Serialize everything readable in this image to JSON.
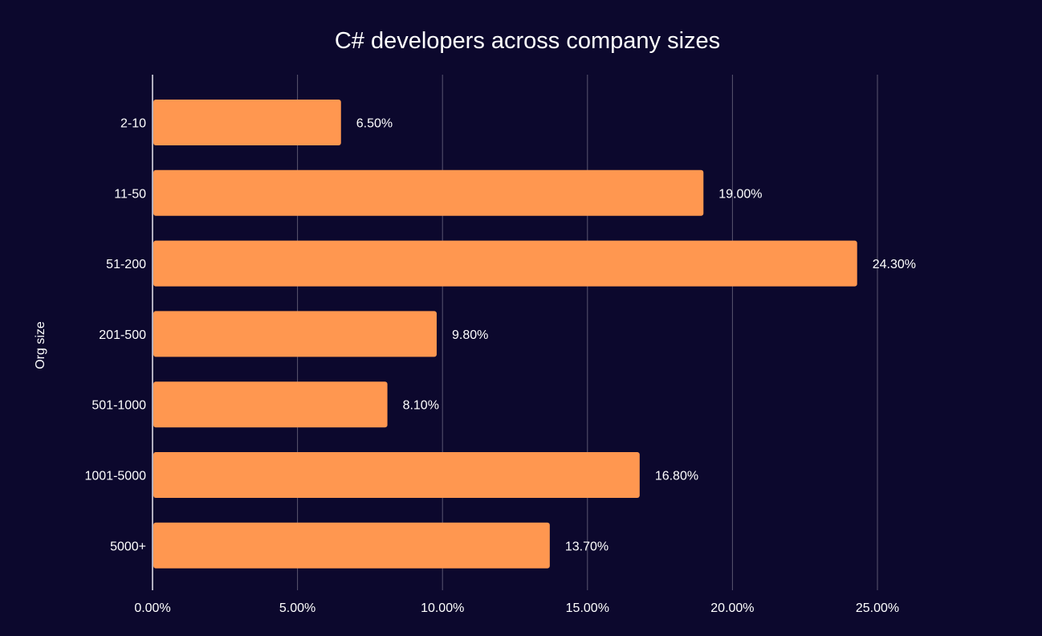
{
  "colors": {
    "background": "#0c082d",
    "bar": "#ff9750",
    "grid": "#5a5670",
    "baseline": "#e6e6ee",
    "text": "#ffffff"
  },
  "chart_data": {
    "type": "bar",
    "orientation": "horizontal",
    "title": "C# developers across company sizes",
    "xlabel": "",
    "ylabel": "Org size",
    "categories": [
      "2-10",
      "11-50",
      "51-200",
      "201-500",
      "501-1000",
      "1001-5000",
      "5000+"
    ],
    "values": [
      6.5,
      19.0,
      24.3,
      9.8,
      8.1,
      16.8,
      13.7
    ],
    "value_labels": [
      "6.50%",
      "19.00%",
      "24.30%",
      "9.80%",
      "8.10%",
      "16.80%",
      "13.70%"
    ],
    "xlim": [
      0,
      25
    ],
    "xticks": [
      0,
      5,
      10,
      15,
      20,
      25
    ],
    "xtick_labels": [
      "0.00%",
      "5.00%",
      "10.00%",
      "15.00%",
      "20.00%",
      "25.00%"
    ],
    "grid": true,
    "legend": "none"
  }
}
